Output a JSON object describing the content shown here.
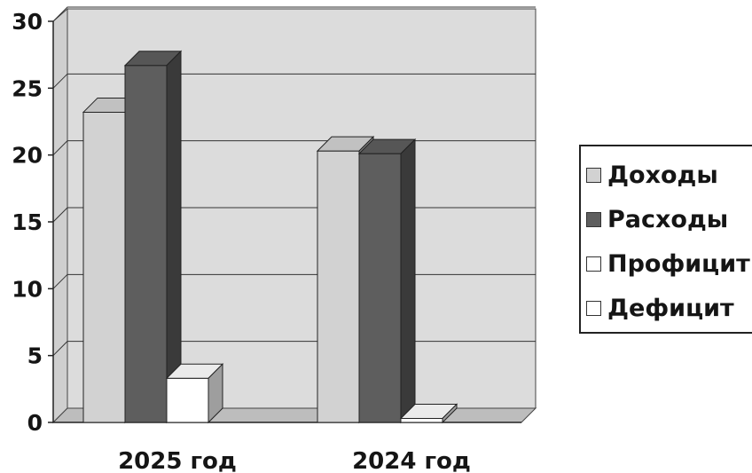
{
  "chart_data": {
    "type": "bar",
    "categories": [
      "2025 год",
      "2024 год"
    ],
    "series": [
      {
        "name": "Доходы",
        "values": [
          23.2,
          20.3
        ],
        "color": "#d2d2d2"
      },
      {
        "name": "Расходы",
        "values": [
          26.7,
          20.1
        ],
        "color": "#5e5e5e"
      },
      {
        "name": "Профицит",
        "values": [
          3.3,
          0.3
        ],
        "color": "#ffffff"
      },
      {
        "name": "Дефицит",
        "values": [
          0,
          0
        ],
        "color": "#ffffff"
      }
    ],
    "yticks": [
      "0",
      "5",
      "10",
      "15",
      "20",
      "25",
      "30"
    ],
    "ylim": [
      0,
      30
    ],
    "grid": true,
    "legend_position": "right"
  }
}
